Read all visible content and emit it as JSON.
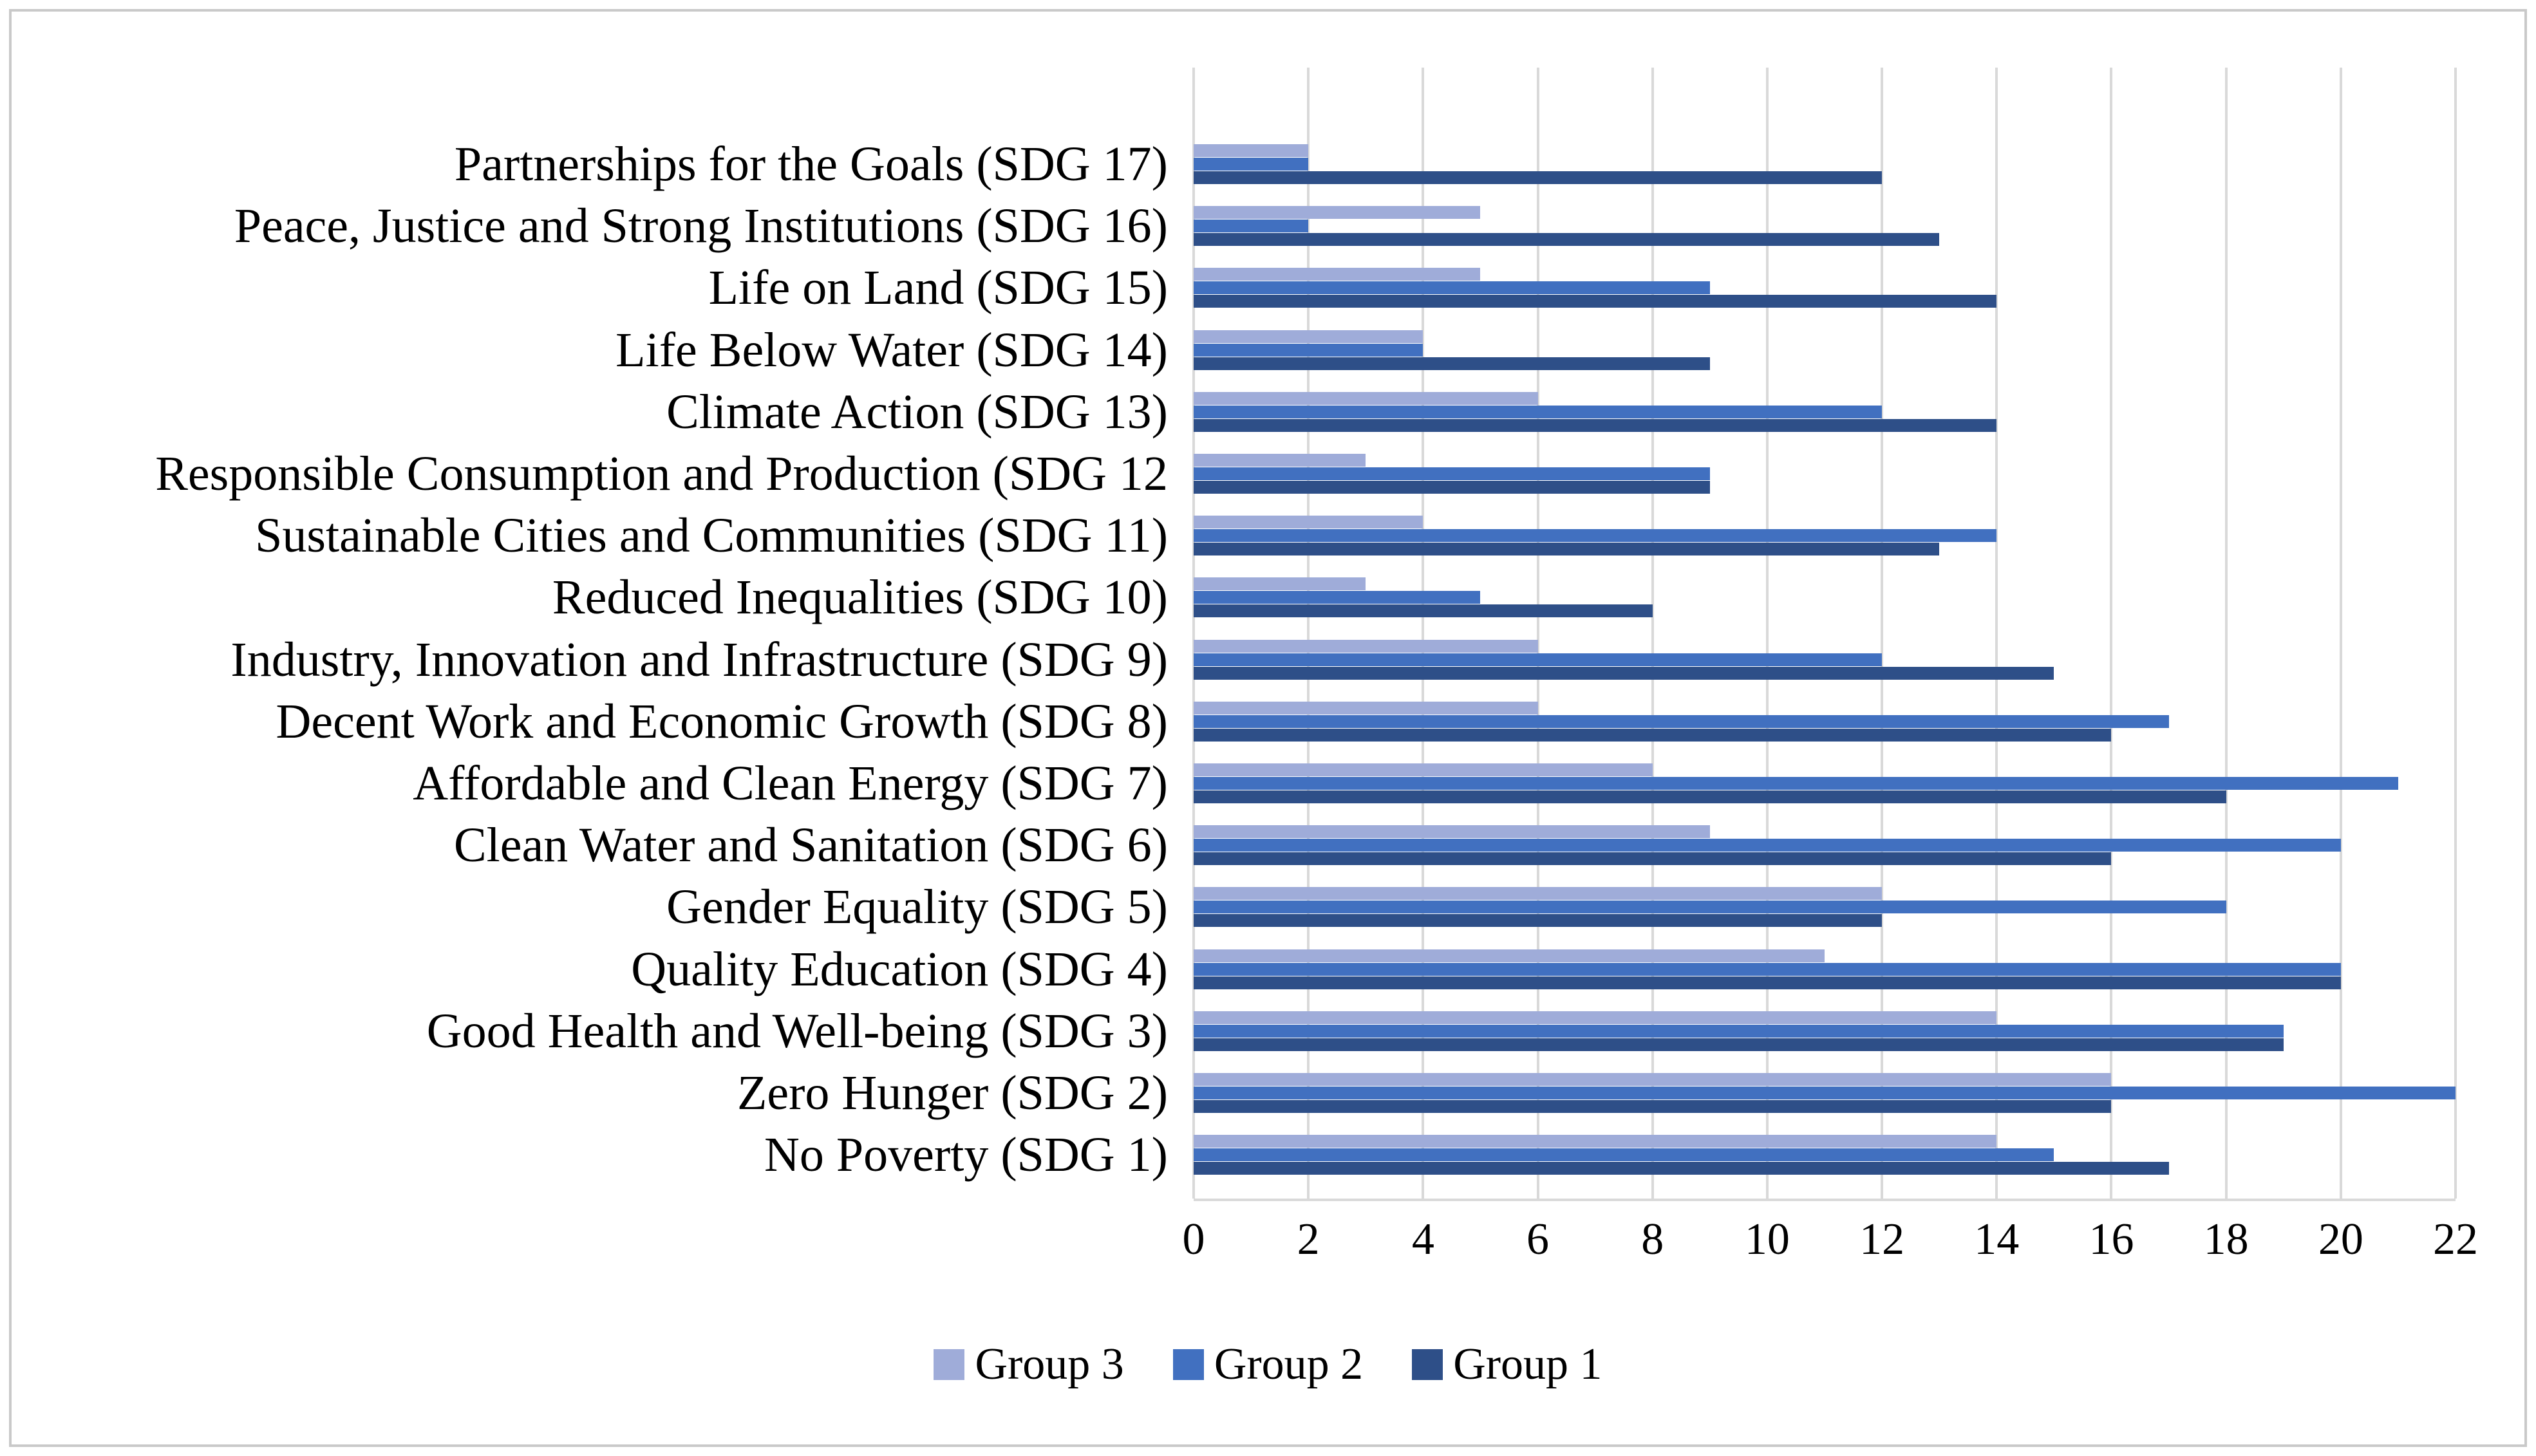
{
  "chart_data": {
    "type": "bar",
    "orientation": "horizontal",
    "title": "",
    "xlabel": "",
    "ylabel": "",
    "categories": [
      "Partnerships for the Goals (SDG 17)",
      "Peace, Justice and Strong Institutions (SDG 16)",
      "Life on Land (SDG 15)",
      "Life Below Water (SDG 14)",
      "Climate Action (SDG 13)",
      "Responsible Consumption and Production (SDG 12",
      "Sustainable Cities and Communities (SDG 11)",
      "Reduced Inequalities (SDG 10)",
      "Industry, Innovation and Infrastructure (SDG 9)",
      "Decent Work and Economic Growth (SDG 8)",
      "Affordable and Clean Energy (SDG 7)",
      "Clean Water and Sanitation (SDG 6)",
      "Gender Equality (SDG 5)",
      "Quality Education (SDG 4)",
      "Good Health and Well-being (SDG 3)",
      "Zero Hunger (SDG 2)",
      "No Poverty (SDG 1)"
    ],
    "series": [
      {
        "name": "Group 3",
        "color": "#9FACD9",
        "values": [
          2,
          5,
          5,
          4,
          6,
          3,
          4,
          3,
          6,
          6,
          8,
          9,
          12,
          11,
          14,
          16,
          14
        ]
      },
      {
        "name": "Group 2",
        "color": "#4170C0",
        "values": [
          2,
          2,
          9,
          4,
          12,
          9,
          14,
          5,
          12,
          17,
          21,
          20,
          18,
          20,
          19,
          22,
          15
        ]
      },
      {
        "name": "Group 1",
        "color": "#2E4F88",
        "values": [
          12,
          13,
          14,
          9,
          14,
          9,
          13,
          8,
          15,
          16,
          18,
          16,
          12,
          20,
          19,
          16,
          17
        ]
      }
    ],
    "xlim": [
      0,
      22
    ],
    "x_ticks": [
      0,
      2,
      4,
      6,
      8,
      10,
      12,
      14,
      16,
      18,
      20,
      22
    ],
    "grid": "vertical",
    "gridline_color": "#d9d9d9",
    "legend_position": "bottom",
    "legend_order": [
      "Group 3",
      "Group 2",
      "Group 1"
    ]
  },
  "frame": {
    "border_color": "#c9c9c9",
    "background": "#ffffff"
  }
}
